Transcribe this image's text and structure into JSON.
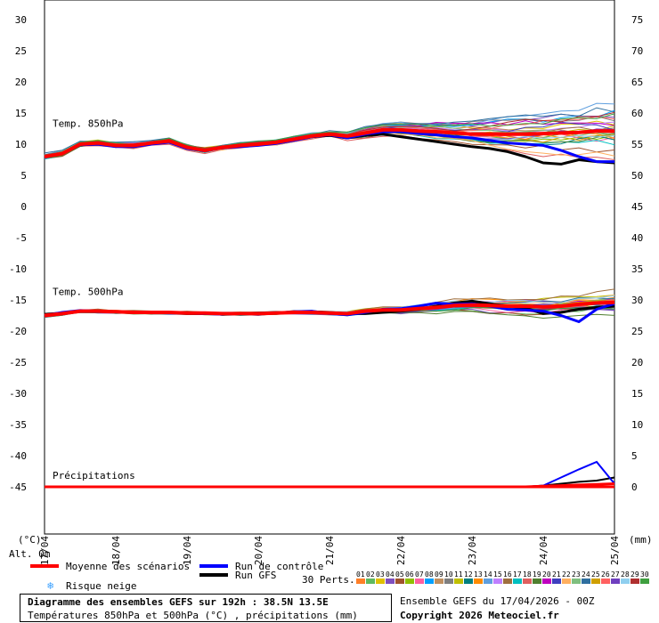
{
  "chart_data": {
    "type": "line",
    "title": "Diagramme des ensembles GEFS sur 192h : 38.5N 13.5E",
    "subtitle": "Températures 850hPa et 500hPa (°C) , précipitations (mm)",
    "left_axis_unit": "(°C)",
    "right_axis_unit": "(mm)",
    "altitude_label": "Alt. 0m",
    "y_left_ticks": [
      "30",
      "25",
      "20",
      "15",
      "10",
      "5",
      "0",
      "-5",
      "-10",
      "-15",
      "-20",
      "-25",
      "-30",
      "-35",
      "-40",
      "-45"
    ],
    "y_right_ticks": [
      "75",
      "70",
      "65",
      "60",
      "55",
      "50",
      "45",
      "40",
      "35",
      "30",
      "25",
      "20",
      "15",
      "10",
      "5",
      "0"
    ],
    "ylim_left": [
      -45,
      30
    ],
    "ylim_right": [
      0,
      75
    ],
    "x_ticks": [
      "17/04",
      "18/04",
      "19/04",
      "20/04",
      "21/04",
      "22/04",
      "23/04",
      "24/04",
      "25/04"
    ],
    "section_labels": [
      "Temp. 850hPa",
      "Temp. 500hPa",
      "Précipitations"
    ],
    "x_hours": [
      0,
      6,
      12,
      18,
      24,
      30,
      36,
      42,
      48,
      54,
      60,
      66,
      72,
      78,
      84,
      90,
      96,
      102,
      108,
      114,
      120,
      126,
      132,
      138,
      144,
      150,
      156,
      162,
      168,
      174,
      180,
      186,
      192
    ],
    "series": [
      {
        "name": "Moyenne des scénarios",
        "color": "#ff0000",
        "t850": [
          8.0,
          8.5,
          10.0,
          10.2,
          9.8,
          9.8,
          10.2,
          10.5,
          9.5,
          9.0,
          9.5,
          9.8,
          10.0,
          10.3,
          10.8,
          11.3,
          11.6,
          11.3,
          11.8,
          12.3,
          12.3,
          12.1,
          12.0,
          11.8,
          11.6,
          11.6,
          11.6,
          11.6,
          11.7,
          11.8,
          11.9,
          12.1,
          12.1
        ],
        "t500": [
          -17.5,
          -17.2,
          -16.8,
          -16.8,
          -16.9,
          -17.0,
          -17.0,
          -17.0,
          -17.1,
          -17.1,
          -17.2,
          -17.2,
          -17.2,
          -17.1,
          -17.0,
          -17.0,
          -17.1,
          -17.2,
          -16.8,
          -16.6,
          -16.6,
          -16.4,
          -16.2,
          -15.9,
          -15.8,
          -15.9,
          -16.0,
          -16.0,
          -16.1,
          -16.0,
          -15.7,
          -15.5,
          -15.4
        ],
        "precip": [
          0,
          0,
          0,
          0,
          0,
          0,
          0,
          0,
          0,
          0,
          0,
          0,
          0,
          0,
          0,
          0,
          0,
          0,
          0,
          0,
          0,
          0,
          0,
          0,
          0,
          0,
          0,
          0,
          0.1,
          0.2,
          0.3,
          0.4,
          0.5
        ]
      },
      {
        "name": "Run de contrôle",
        "color": "#0000ff",
        "t850": [
          8.0,
          8.5,
          9.9,
          10.0,
          9.6,
          9.6,
          10.0,
          10.3,
          9.3,
          8.9,
          9.4,
          9.6,
          9.8,
          10.1,
          10.6,
          11.2,
          11.5,
          11.0,
          11.6,
          12.0,
          12.0,
          11.7,
          11.5,
          11.2,
          11.0,
          10.6,
          10.2,
          10.0,
          9.8,
          9.0,
          8.0,
          7.2,
          7.2
        ],
        "t500": [
          -17.5,
          -17.0,
          -16.7,
          -16.8,
          -16.9,
          -17.0,
          -17.0,
          -17.1,
          -17.1,
          -17.2,
          -17.3,
          -17.2,
          -17.2,
          -17.1,
          -16.9,
          -16.8,
          -17.2,
          -17.4,
          -17.0,
          -16.5,
          -16.4,
          -16.0,
          -15.5,
          -15.7,
          -15.6,
          -16.0,
          -16.5,
          -16.6,
          -16.8,
          -17.5,
          -18.5,
          -16.5,
          -15.6
        ],
        "precip": [
          0,
          0,
          0,
          0,
          0,
          0,
          0,
          0,
          0,
          0,
          0,
          0,
          0,
          0,
          0,
          0,
          0,
          0,
          0,
          0,
          0,
          0,
          0,
          0,
          0,
          0,
          0,
          0,
          0.2,
          1.5,
          2.8,
          4.0,
          0.5
        ]
      },
      {
        "name": "Run GFS",
        "color": "#000000",
        "t850": [
          8.0,
          8.5,
          9.9,
          10.0,
          9.7,
          9.7,
          10.1,
          10.4,
          9.4,
          9.0,
          9.5,
          9.7,
          9.9,
          10.2,
          10.7,
          11.2,
          11.4,
          11.0,
          11.4,
          11.6,
          11.2,
          10.8,
          10.4,
          10.0,
          9.6,
          9.3,
          8.8,
          8.0,
          7.0,
          6.8,
          7.5,
          7.2,
          7.0
        ],
        "t500": [
          -17.3,
          -17.1,
          -16.8,
          -16.8,
          -16.9,
          -17.0,
          -17.1,
          -17.1,
          -17.2,
          -17.2,
          -17.2,
          -17.2,
          -17.1,
          -17.0,
          -17.0,
          -16.9,
          -17.0,
          -17.2,
          -17.2,
          -17.0,
          -16.8,
          -16.5,
          -16.0,
          -15.5,
          -15.2,
          -15.6,
          -16.0,
          -16.3,
          -17.2,
          -17.0,
          -16.5,
          -16.2,
          -16.0
        ],
        "precip": [
          0,
          0,
          0,
          0,
          0,
          0,
          0,
          0,
          0,
          0,
          0,
          0,
          0,
          0,
          0,
          0,
          0,
          0,
          0,
          0,
          0,
          0,
          0,
          0,
          0,
          0,
          0,
          0,
          0.2,
          0.5,
          0.8,
          1.0,
          1.5
        ]
      }
    ],
    "perturbations_label": "30 Perts.",
    "member_numbers": [
      "01",
      "02",
      "03",
      "04",
      "05",
      "06",
      "07",
      "08",
      "09",
      "10",
      "11",
      "12",
      "13",
      "14",
      "15",
      "16",
      "17",
      "18",
      "19",
      "20",
      "21",
      "22",
      "23",
      "24",
      "25",
      "26",
      "27",
      "28",
      "29",
      "30"
    ],
    "member_colors": [
      "#ff7f27",
      "#5fb95f",
      "#e0c000",
      "#7f4fbf",
      "#a0522d",
      "#8fbf00",
      "#ff5fa0",
      "#00a0ff",
      "#c09060",
      "#7f7f7f",
      "#bfbf00",
      "#008080",
      "#ff8c00",
      "#5f9fdf",
      "#bf7fff",
      "#9f6f3f",
      "#00bfbf",
      "#df5f5f",
      "#4f7f2f",
      "#bf00bf",
      "#3f3fbf",
      "#ffaf5f",
      "#7fbf7f",
      "#2f6f9f",
      "#cf9f00",
      "#ff6060",
      "#6f3fbf",
      "#8fcfef",
      "#af2f2f",
      "#3f9f3f"
    ]
  },
  "legend": {
    "mean": "Moyenne des scénarios",
    "control": "Run de contrôle",
    "gfs": "Run GFS",
    "snow": "Risque neige",
    "perts": "30 Perts."
  },
  "info": {
    "title": "Diagramme des ensembles GEFS sur 192h : 38.5N 13.5E",
    "subtitle": "Températures 850hPa et 500hPa (°C) , précipitations (mm)",
    "run": "Ensemble GEFS du 17/04/2026 - 00Z",
    "copyright": "Copyright 2026 Meteociel.fr"
  }
}
